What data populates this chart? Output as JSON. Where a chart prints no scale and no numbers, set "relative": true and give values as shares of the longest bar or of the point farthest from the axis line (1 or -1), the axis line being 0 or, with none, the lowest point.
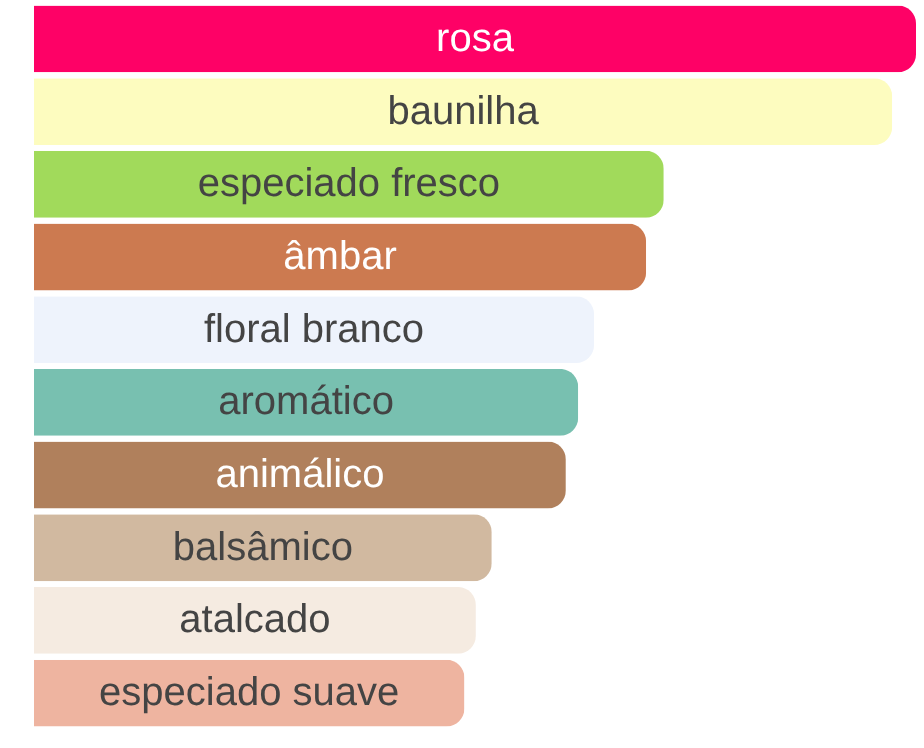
{
  "chart_data": {
    "type": "bar",
    "orientation": "horizontal",
    "relative": true,
    "categories": [
      "rosa",
      "baunilha",
      "especiado fresco",
      "âmbar",
      "floral branco",
      "aromático",
      "animálico",
      "balsâmico",
      "atalcado",
      "especiado suave"
    ],
    "values": [
      1,
      0.973,
      0.714,
      0.694,
      0.635,
      0.617,
      0.603,
      0.519,
      0.501,
      0.488
    ],
    "colors": [
      "#fe0166",
      "#fdfcbf",
      "#a1da5b",
      "#cc7a50",
      "#eef3fc",
      "#78c0b0",
      "#b0805c",
      "#d1b9a0",
      "#f5ebe1",
      "#eeb4a0"
    ]
  }
}
